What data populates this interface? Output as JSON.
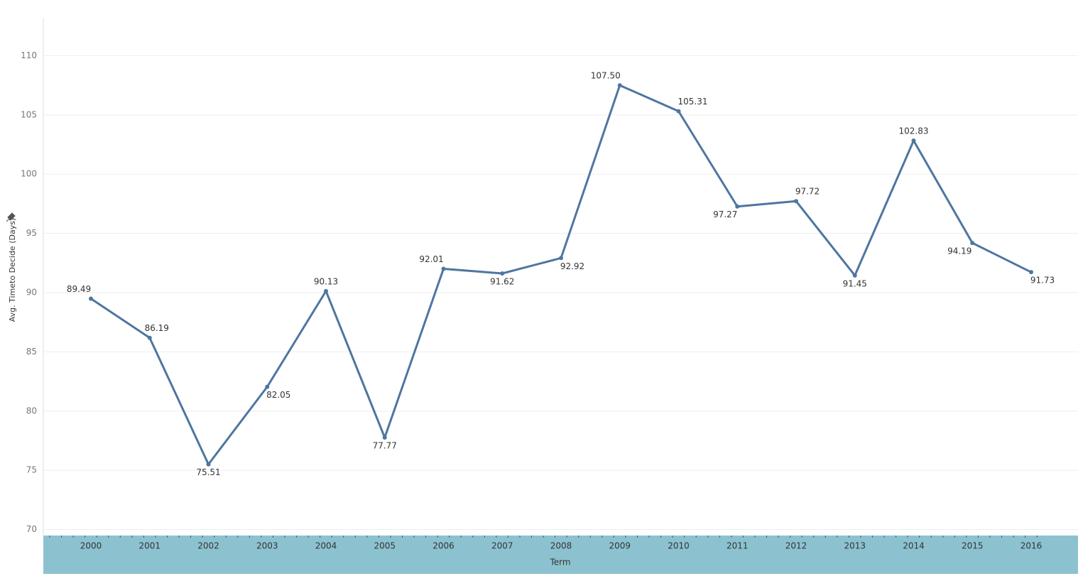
{
  "chart_data": {
    "type": "line",
    "x_label": "Term",
    "y_label": "Avg. Timeto Decide (Days)",
    "categories": [
      "2000",
      "2001",
      "2002",
      "2003",
      "2004",
      "2005",
      "2006",
      "2007",
      "2008",
      "2009",
      "2010",
      "2011",
      "2012",
      "2013",
      "2014",
      "2015",
      "2016"
    ],
    "values": [
      89.49,
      86.19,
      75.51,
      82.05,
      90.13,
      77.77,
      92.01,
      91.62,
      92.92,
      107.5,
      105.31,
      97.27,
      97.72,
      91.45,
      102.83,
      94.19,
      91.73
    ],
    "value_labels": [
      "89.49",
      "86.19",
      "75.51",
      "82.05",
      "90.13",
      "77.77",
      "92.01",
      "91.62",
      "92.92",
      "107.50",
      "105.31",
      "97.27",
      "97.72",
      "91.45",
      "102.83",
      "94.19",
      "91.73"
    ],
    "color": "#4e76a0",
    "ylim": [
      69.5,
      113.2
    ],
    "yticks": [
      70,
      75,
      80,
      85,
      90,
      95,
      100,
      105,
      110
    ],
    "grid": true
  }
}
